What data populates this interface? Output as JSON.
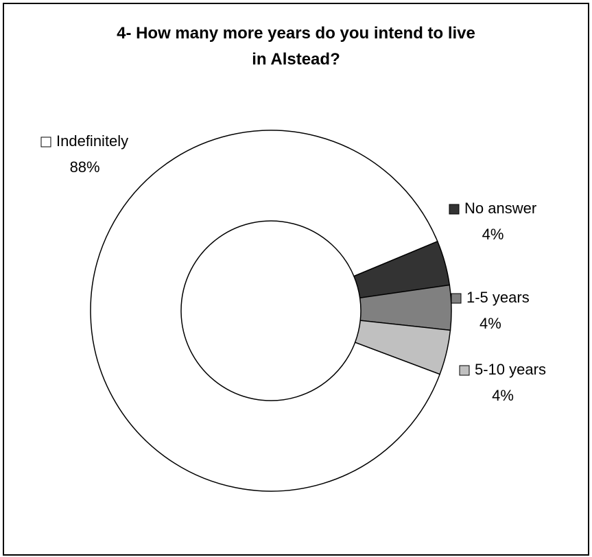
{
  "chart_data": {
    "type": "donut",
    "title": "4- How many more years do you intend to live in Alstead?",
    "categories": [
      "Indefinitely",
      "No answer",
      "1-5 years",
      "5-10 years"
    ],
    "values": [
      88,
      4,
      4,
      4
    ],
    "value_labels": [
      "88%",
      "4%",
      "4%",
      "4%"
    ],
    "colors": [
      "#ffffff",
      "#333333",
      "#808080",
      "#c0c0c0"
    ]
  }
}
